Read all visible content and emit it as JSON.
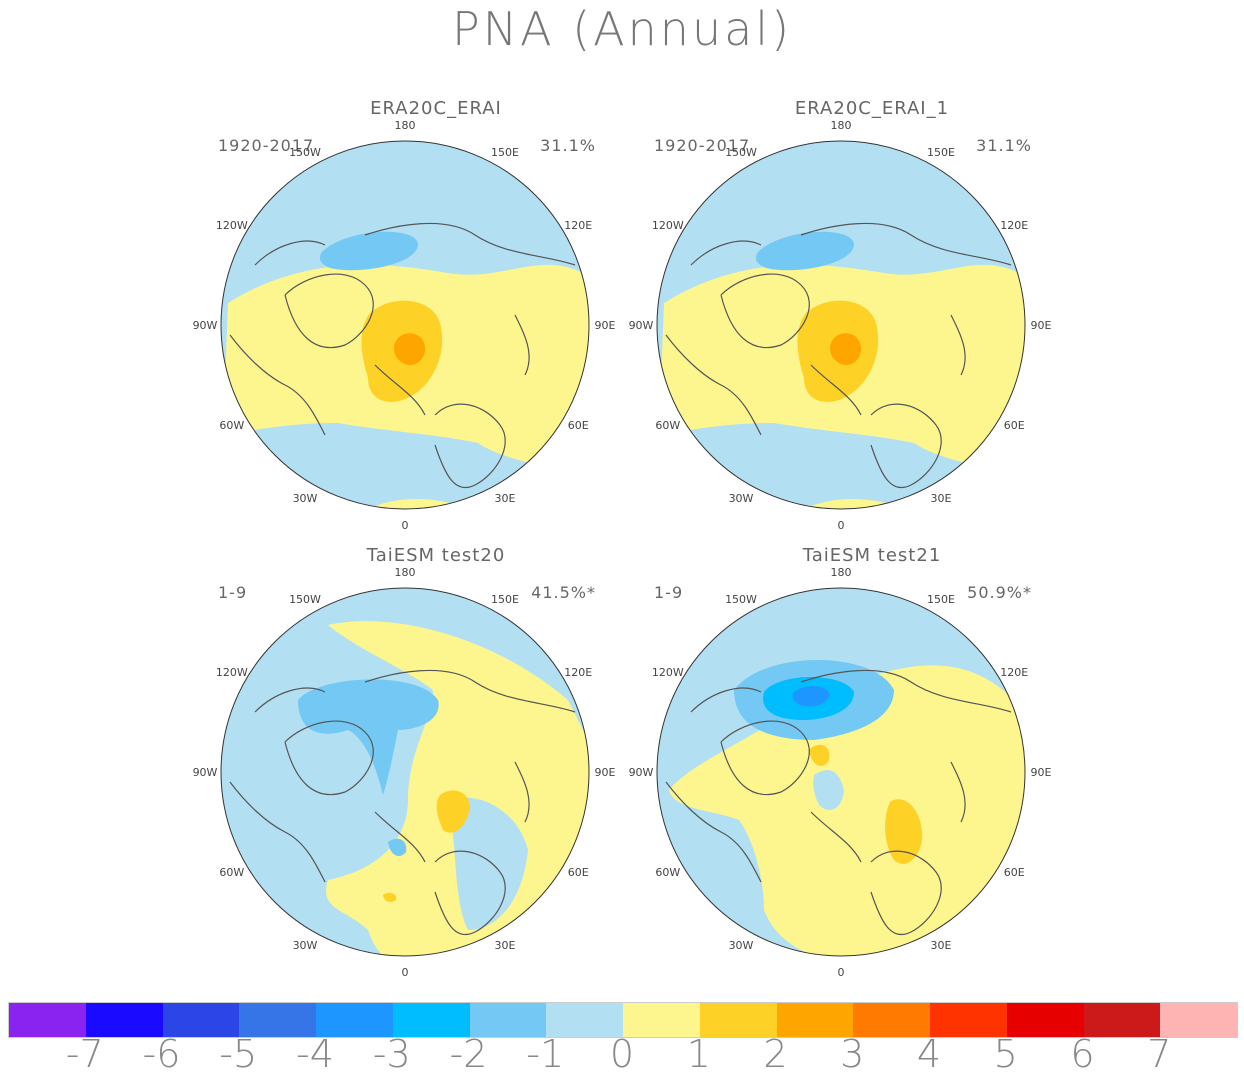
{
  "title": "PNA (Annual)",
  "panels": [
    {
      "title": "ERA20C_ERAI",
      "period": "1920-2017",
      "percent": "31.1%",
      "variant": "era"
    },
    {
      "title": "ERA20C_ERAI_1",
      "period": "1920-2017",
      "percent": "31.1%",
      "variant": "era"
    },
    {
      "title": "TaiESM test20",
      "period": "1-9",
      "percent": "41.5%*",
      "variant": "t20"
    },
    {
      "title": "TaiESM test21",
      "period": "1-9",
      "percent": "50.9%*",
      "variant": "t21"
    }
  ],
  "longitude_labels": [
    "180",
    "150E",
    "120E",
    "90E",
    "60E",
    "30E",
    "0",
    "30W",
    "60W",
    "90W",
    "120W",
    "150W"
  ],
  "colorbar": {
    "colors": [
      "#8a22f0",
      "#1a0aff",
      "#2b45e6",
      "#3575e8",
      "#1e96ff",
      "#00bdff",
      "#73c9f4",
      "#b3dff3",
      "#fdf68e",
      "#fed126",
      "#ffa500",
      "#ff7a00",
      "#ff3300",
      "#e60000",
      "#cc1a1a",
      "#ffb4b4"
    ],
    "labels": [
      "-7",
      "-6",
      "-5",
      "-4",
      "-3",
      "-2",
      "-1",
      "0",
      "1",
      "2",
      "3",
      "4",
      "5",
      "6",
      "7"
    ]
  },
  "map_colors": {
    "neg1": "#b3dff3",
    "neg2": "#73c9f4",
    "neg3": "#00bdff",
    "neg4": "#1e96ff",
    "pos1": "#fdf68e",
    "pos2": "#fed126",
    "pos3": "#ffa500",
    "coast": "#555555",
    "rim": "#333333"
  }
}
